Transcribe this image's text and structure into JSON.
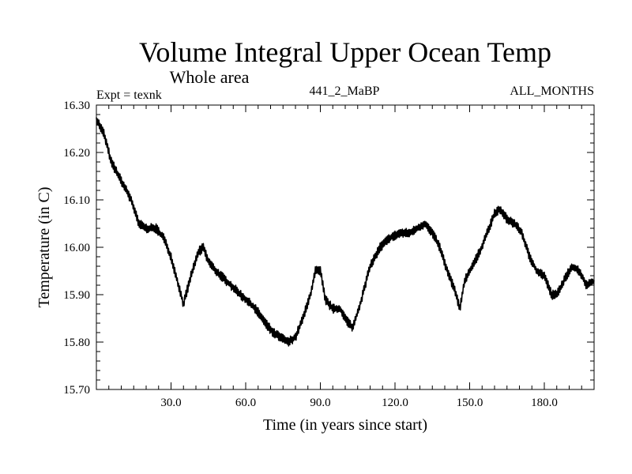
{
  "chart_data": {
    "type": "line",
    "title": "Volume Integral Upper Ocean Temp",
    "subtitle": "Whole area",
    "expt_label": "Expt = texnk",
    "run_label": "441_2_MaBP",
    "months_label": "ALL_MONTHS",
    "xlabel": "Time (in years since start)",
    "ylabel": "Temperature (in C)",
    "xlim": [
      0,
      200
    ],
    "ylim": [
      15.7,
      16.3
    ],
    "x_ticks": [
      {
        "value": 30,
        "label": "30.0"
      },
      {
        "value": 60,
        "label": "60.0"
      },
      {
        "value": 90,
        "label": "90.0"
      },
      {
        "value": 120,
        "label": "120.0"
      },
      {
        "value": 150,
        "label": "150.0"
      },
      {
        "value": 180,
        "label": "180.0"
      }
    ],
    "y_ticks": [
      {
        "value": 15.7,
        "label": "15.70"
      },
      {
        "value": 15.8,
        "label": "15.80"
      },
      {
        "value": 15.9,
        "label": "15.90"
      },
      {
        "value": 16.0,
        "label": "16.00"
      },
      {
        "value": 16.1,
        "label": "16.10"
      },
      {
        "value": 16.2,
        "label": "16.20"
      },
      {
        "value": 16.3,
        "label": "16.30"
      }
    ],
    "series": [
      {
        "name": "Volume Integral Upper Ocean Temp",
        "x": [
          0,
          3,
          6,
          10,
          14,
          17,
          20,
          24,
          27,
          30,
          33,
          35,
          38,
          41,
          43,
          45,
          48,
          52,
          56,
          60,
          64,
          68,
          71,
          74,
          77,
          80,
          83,
          86,
          88,
          90,
          92,
          95,
          98,
          100,
          103,
          106,
          110,
          114,
          118,
          122,
          126,
          129,
          132,
          135,
          138,
          141,
          144,
          146,
          148,
          151,
          154,
          157,
          160,
          162,
          165,
          168,
          171,
          174,
          177,
          180,
          183,
          185,
          188,
          191,
          194,
          197,
          200
        ],
        "values": [
          16.27,
          16.24,
          16.18,
          16.14,
          16.1,
          16.05,
          16.04,
          16.04,
          16.02,
          15.98,
          15.92,
          15.88,
          15.94,
          15.99,
          16.0,
          15.97,
          15.95,
          15.93,
          15.91,
          15.89,
          15.87,
          15.84,
          15.82,
          15.81,
          15.8,
          15.81,
          15.85,
          15.9,
          15.95,
          15.95,
          15.89,
          15.87,
          15.87,
          15.85,
          15.83,
          15.88,
          15.96,
          16.0,
          16.02,
          16.03,
          16.03,
          16.04,
          16.05,
          16.03,
          16.0,
          15.95,
          15.91,
          15.87,
          15.93,
          15.96,
          15.99,
          16.03,
          16.07,
          16.08,
          16.06,
          16.05,
          16.03,
          15.98,
          15.95,
          15.94,
          15.9,
          15.9,
          15.93,
          15.96,
          15.95,
          15.92,
          15.93
        ]
      }
    ]
  }
}
